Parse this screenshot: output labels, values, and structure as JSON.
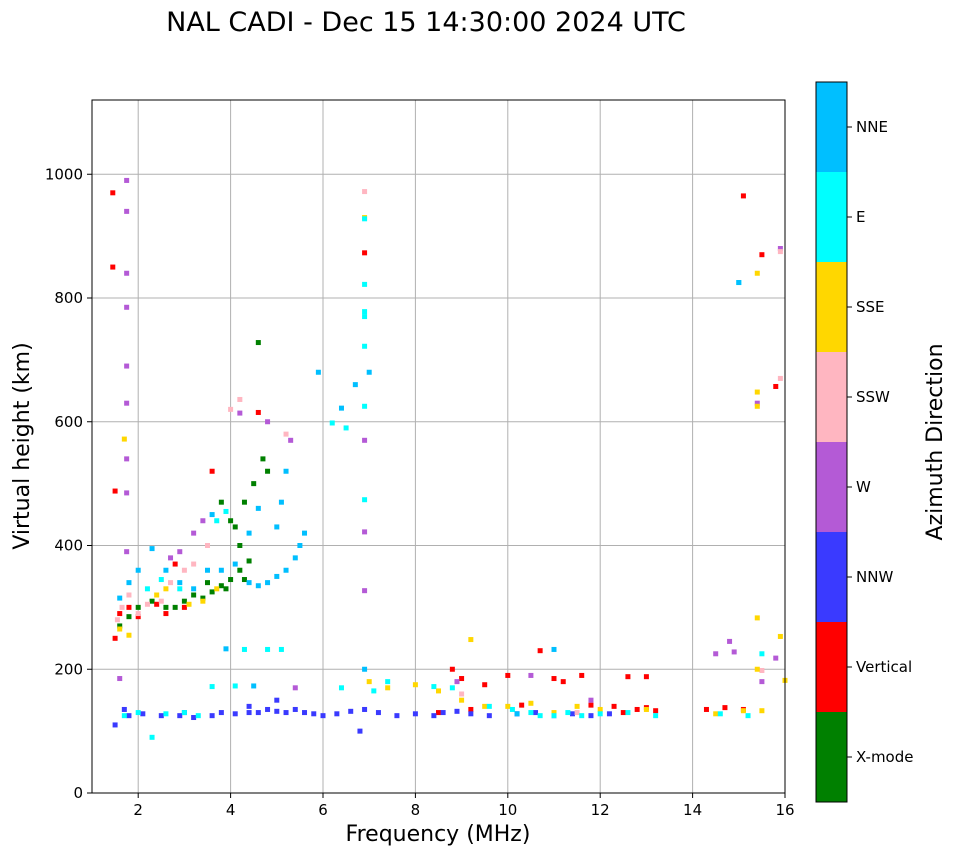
{
  "chart_data": {
    "type": "scatter",
    "title": "NAL CADI - Dec 15 14:30:00 2024 UTC",
    "xlabel": "Frequency (MHz)",
    "ylabel": "Virtual height (km)",
    "xlim": [
      1,
      16
    ],
    "ylim": [
      0,
      1120
    ],
    "xticks": [
      2,
      4,
      6,
      8,
      10,
      12,
      14,
      16
    ],
    "yticks": [
      0,
      200,
      400,
      600,
      800,
      1000
    ],
    "grid": true,
    "colorbar": {
      "label": "Azimuth Direction",
      "categories": [
        {
          "name": "X-mode",
          "color": "#008000"
        },
        {
          "name": "Vertical",
          "color": "#ff0000"
        },
        {
          "name": "NNW",
          "color": "#3a3aff"
        },
        {
          "name": "W",
          "color": "#b45ad6"
        },
        {
          "name": "SSW",
          "color": "#ffb6c1"
        },
        {
          "name": "SSE",
          "color": "#ffd700"
        },
        {
          "name": "E",
          "color": "#00ffff"
        },
        {
          "name": "NNE",
          "color": "#00bfff"
        }
      ]
    },
    "series": [
      {
        "name": "X-mode",
        "points": [
          [
            1.6,
            270
          ],
          [
            1.8,
            285
          ],
          [
            2.0,
            300
          ],
          [
            2.3,
            310
          ],
          [
            2.6,
            300
          ],
          [
            2.8,
            300
          ],
          [
            3.0,
            310
          ],
          [
            3.2,
            320
          ],
          [
            3.4,
            315
          ],
          [
            3.6,
            325
          ],
          [
            3.8,
            335
          ],
          [
            4.0,
            345
          ],
          [
            4.2,
            360
          ],
          [
            4.4,
            375
          ],
          [
            4.2,
            400
          ],
          [
            4.1,
            430
          ],
          [
            4.3,
            470
          ],
          [
            4.5,
            500
          ],
          [
            4.7,
            540
          ],
          [
            4.8,
            520
          ],
          [
            3.8,
            470
          ],
          [
            4.0,
            440
          ],
          [
            4.6,
            728
          ],
          [
            4.3,
            345
          ],
          [
            3.9,
            330
          ],
          [
            3.5,
            340
          ]
        ]
      },
      {
        "name": "Vertical",
        "points": [
          [
            1.45,
            970
          ],
          [
            1.45,
            850
          ],
          [
            1.5,
            488
          ],
          [
            1.5,
            250
          ],
          [
            1.6,
            290
          ],
          [
            1.8,
            300
          ],
          [
            2.0,
            285
          ],
          [
            2.4,
            305
          ],
          [
            2.6,
            290
          ],
          [
            3.0,
            300
          ],
          [
            2.8,
            370
          ],
          [
            3.6,
            520
          ],
          [
            4.6,
            615
          ],
          [
            6.9,
            873
          ],
          [
            8.8,
            200
          ],
          [
            9.0,
            185
          ],
          [
            9.5,
            175
          ],
          [
            10.0,
            190
          ],
          [
            10.7,
            230
          ],
          [
            11.0,
            185
          ],
          [
            11.2,
            180
          ],
          [
            11.6,
            190
          ],
          [
            12.3,
            140
          ],
          [
            12.5,
            130
          ],
          [
            12.8,
            135
          ],
          [
            13.0,
            138
          ],
          [
            13.2,
            133
          ],
          [
            12.6,
            188
          ],
          [
            13.0,
            188
          ],
          [
            14.3,
            135
          ],
          [
            14.7,
            138
          ],
          [
            15.1,
            135
          ],
          [
            15.1,
            965
          ],
          [
            15.5,
            870
          ],
          [
            15.8,
            657
          ],
          [
            8.5,
            130
          ],
          [
            9.2,
            135
          ],
          [
            10.3,
            142
          ],
          [
            11.8,
            142
          ]
        ]
      },
      {
        "name": "NNW",
        "points": [
          [
            1.5,
            110
          ],
          [
            1.7,
            135
          ],
          [
            1.8,
            125
          ],
          [
            2.1,
            128
          ],
          [
            2.5,
            125
          ],
          [
            2.9,
            125
          ],
          [
            3.2,
            122
          ],
          [
            3.6,
            125
          ],
          [
            3.8,
            130
          ],
          [
            4.1,
            128
          ],
          [
            4.4,
            130
          ],
          [
            4.6,
            130
          ],
          [
            4.8,
            135
          ],
          [
            5.0,
            132
          ],
          [
            5.2,
            130
          ],
          [
            5.4,
            135
          ],
          [
            5.6,
            130
          ],
          [
            5.8,
            128
          ],
          [
            6.0,
            125
          ],
          [
            6.3,
            128
          ],
          [
            6.6,
            132
          ],
          [
            6.9,
            135
          ],
          [
            7.2,
            130
          ],
          [
            7.6,
            125
          ],
          [
            8.0,
            128
          ],
          [
            8.4,
            125
          ],
          [
            8.6,
            130
          ],
          [
            8.9,
            132
          ],
          [
            9.2,
            128
          ],
          [
            9.6,
            125
          ],
          [
            10.2,
            128
          ],
          [
            10.6,
            130
          ],
          [
            11.0,
            125
          ],
          [
            11.4,
            128
          ],
          [
            11.8,
            125
          ],
          [
            12.2,
            128
          ],
          [
            6.8,
            100
          ],
          [
            5.0,
            150
          ],
          [
            4.4,
            140
          ],
          [
            3.0,
            130
          ]
        ]
      },
      {
        "name": "W",
        "points": [
          [
            1.75,
            990
          ],
          [
            1.75,
            940
          ],
          [
            1.75,
            840
          ],
          [
            1.75,
            785
          ],
          [
            1.75,
            690
          ],
          [
            1.75,
            630
          ],
          [
            1.75,
            540
          ],
          [
            1.75,
            485
          ],
          [
            1.75,
            390
          ],
          [
            1.6,
            185
          ],
          [
            2.7,
            380
          ],
          [
            2.9,
            390
          ],
          [
            3.2,
            420
          ],
          [
            3.4,
            440
          ],
          [
            4.2,
            614
          ],
          [
            4.8,
            600
          ],
          [
            5.3,
            570
          ],
          [
            6.9,
            570
          ],
          [
            6.9,
            422
          ],
          [
            6.9,
            327
          ],
          [
            14.5,
            225
          ],
          [
            14.8,
            245
          ],
          [
            14.9,
            228
          ],
          [
            15.4,
            630
          ],
          [
            15.5,
            180
          ],
          [
            15.8,
            218
          ],
          [
            15.9,
            880
          ],
          [
            8.9,
            180
          ],
          [
            10.5,
            190
          ],
          [
            11.8,
            150
          ],
          [
            5.4,
            170
          ]
        ]
      },
      {
        "name": "SSW",
        "points": [
          [
            1.55,
            280
          ],
          [
            1.65,
            300
          ],
          [
            1.8,
            320
          ],
          [
            2.0,
            290
          ],
          [
            2.2,
            305
          ],
          [
            2.5,
            310
          ],
          [
            2.7,
            340
          ],
          [
            3.0,
            360
          ],
          [
            3.2,
            370
          ],
          [
            3.5,
            400
          ],
          [
            4.0,
            620
          ],
          [
            4.2,
            636
          ],
          [
            5.2,
            580
          ],
          [
            6.9,
            972
          ],
          [
            15.5,
            198
          ],
          [
            15.9,
            670
          ],
          [
            15.9,
            875
          ],
          [
            11.5,
            130
          ],
          [
            9.0,
            160
          ]
        ]
      },
      {
        "name": "SSE",
        "points": [
          [
            1.6,
            265
          ],
          [
            1.8,
            255
          ],
          [
            1.7,
            572
          ],
          [
            2.4,
            320
          ],
          [
            2.6,
            330
          ],
          [
            3.1,
            305
          ],
          [
            3.4,
            310
          ],
          [
            3.7,
            330
          ],
          [
            6.9,
            930
          ],
          [
            7.0,
            180
          ],
          [
            7.4,
            170
          ],
          [
            8.0,
            175
          ],
          [
            8.5,
            165
          ],
          [
            9.0,
            150
          ],
          [
            9.2,
            248
          ],
          [
            9.5,
            140
          ],
          [
            10.0,
            140
          ],
          [
            10.5,
            145
          ],
          [
            11.0,
            130
          ],
          [
            11.5,
            140
          ],
          [
            12.0,
            135
          ],
          [
            13.0,
            135
          ],
          [
            14.5,
            128
          ],
          [
            15.1,
            133
          ],
          [
            15.5,
            133
          ],
          [
            15.4,
            283
          ],
          [
            15.4,
            648
          ],
          [
            15.4,
            625
          ],
          [
            15.4,
            840
          ],
          [
            15.4,
            200
          ],
          [
            15.9,
            253
          ],
          [
            16.0,
            182
          ]
        ]
      },
      {
        "name": "E",
        "points": [
          [
            2.3,
            90
          ],
          [
            1.7,
            125
          ],
          [
            2.0,
            130
          ],
          [
            2.6,
            128
          ],
          [
            3.0,
            130
          ],
          [
            3.3,
            125
          ],
          [
            3.6,
            172
          ],
          [
            4.1,
            173
          ],
          [
            4.3,
            232
          ],
          [
            4.8,
            232
          ],
          [
            5.1,
            232
          ],
          [
            6.2,
            598
          ],
          [
            6.5,
            590
          ],
          [
            6.9,
            625
          ],
          [
            6.9,
            928
          ],
          [
            6.9,
            822
          ],
          [
            6.9,
            778
          ],
          [
            6.9,
            770
          ],
          [
            6.9,
            722
          ],
          [
            6.9,
            474
          ],
          [
            6.4,
            170
          ],
          [
            7.1,
            165
          ],
          [
            7.4,
            180
          ],
          [
            8.4,
            172
          ],
          [
            8.8,
            170
          ],
          [
            9.6,
            140
          ],
          [
            10.1,
            135
          ],
          [
            10.5,
            130
          ],
          [
            10.7,
            125
          ],
          [
            11.0,
            125
          ],
          [
            11.3,
            130
          ],
          [
            11.6,
            125
          ],
          [
            12.0,
            128
          ],
          [
            12.6,
            130
          ],
          [
            13.2,
            125
          ],
          [
            14.6,
            128
          ],
          [
            15.2,
            125
          ],
          [
            15.5,
            225
          ],
          [
            15.0,
            825
          ],
          [
            3.7,
            440
          ],
          [
            3.9,
            455
          ],
          [
            2.2,
            330
          ],
          [
            2.5,
            345
          ],
          [
            2.9,
            330
          ]
        ]
      },
      {
        "name": "NNE",
        "points": [
          [
            1.6,
            315
          ],
          [
            1.8,
            340
          ],
          [
            2.0,
            360
          ],
          [
            2.3,
            395
          ],
          [
            2.6,
            360
          ],
          [
            2.9,
            340
          ],
          [
            3.2,
            330
          ],
          [
            3.5,
            360
          ],
          [
            3.8,
            360
          ],
          [
            4.1,
            370
          ],
          [
            4.4,
            340
          ],
          [
            4.6,
            335
          ],
          [
            4.8,
            340
          ],
          [
            5.0,
            350
          ],
          [
            5.2,
            360
          ],
          [
            5.4,
            380
          ],
          [
            5.5,
            400
          ],
          [
            5.6,
            420
          ],
          [
            5.0,
            430
          ],
          [
            5.2,
            520
          ],
          [
            5.1,
            470
          ],
          [
            4.6,
            460
          ],
          [
            4.4,
            420
          ],
          [
            3.6,
            450
          ],
          [
            6.7,
            660
          ],
          [
            6.4,
            622
          ],
          [
            5.9,
            680
          ],
          [
            15.0,
            825
          ],
          [
            11.0,
            232
          ],
          [
            3.9,
            233
          ],
          [
            4.5,
            173
          ],
          [
            7.0,
            680
          ],
          [
            6.9,
            200
          ],
          [
            10.2,
            128
          ]
        ]
      }
    ]
  }
}
